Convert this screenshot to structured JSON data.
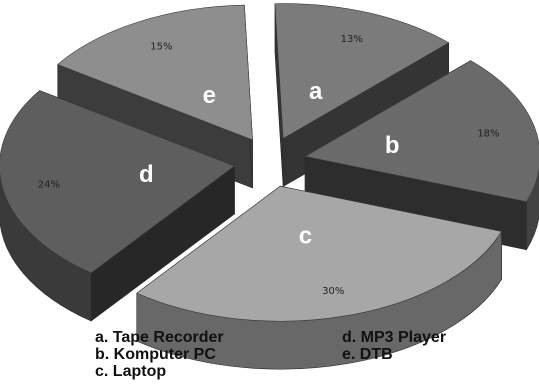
{
  "chart_data": {
    "type": "pie",
    "style": "3d-exploded",
    "title": "",
    "slices": [
      {
        "letter": "a",
        "label": "Tape Recorder",
        "value": 13,
        "value_label": "13%",
        "color": "#7b7b7b"
      },
      {
        "letter": "b",
        "label": "Komputer PC",
        "value": 18,
        "value_label": "18%",
        "color": "#6a6a6a"
      },
      {
        "letter": "c",
        "label": "Laptop",
        "value": 30,
        "value_label": "30%",
        "color": "#a7a7a7"
      },
      {
        "letter": "d",
        "label": "MP3 Player",
        "value": 24,
        "value_label": "24%",
        "color": "#5e5e5e"
      },
      {
        "letter": "e",
        "label": "DTB",
        "value": 15,
        "value_label": "15%",
        "color": "#8e8e8e"
      }
    ],
    "legend": {
      "placement": "bottom",
      "left_column": [
        "a. Tape Recorder",
        "b. Komputer PC",
        "c. Laptop"
      ],
      "right_column": [
        "d. MP3 Player",
        "e. DTB"
      ]
    }
  }
}
